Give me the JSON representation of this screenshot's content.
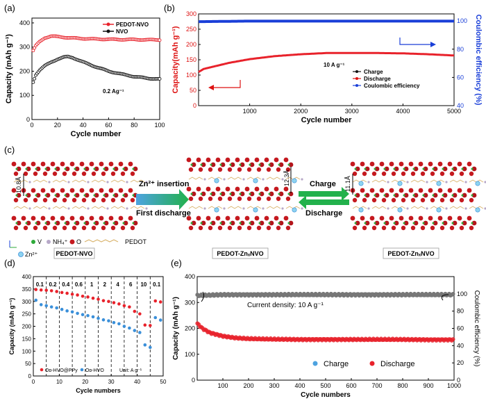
{
  "chart_data": [
    {
      "panel": "(a)",
      "type": "scatter",
      "xlabel": "Cycle number",
      "ylabel": "Capacity (mAh g⁻¹)",
      "xlim": [
        0,
        100
      ],
      "ylim": [
        0,
        420
      ],
      "xticks": [
        "0",
        "20",
        "40",
        "60",
        "80",
        "100"
      ],
      "yticks": [
        "0",
        "100",
        "200",
        "300",
        "400"
      ],
      "annotation": "0.2 Ag⁻¹",
      "legend_position": "top-right",
      "series": [
        {
          "name": "PEDOT-NVO",
          "color": "#e8222b",
          "x": [
            1,
            3,
            6,
            10,
            15,
            20,
            30,
            40,
            50,
            60,
            70,
            80,
            90,
            100
          ],
          "y": [
            285,
            305,
            322,
            338,
            345,
            343,
            338,
            335,
            333,
            332,
            331,
            331,
            330,
            330
          ]
        },
        {
          "name": "NVO",
          "color": "#111111",
          "x": [
            1,
            3,
            6,
            10,
            15,
            20,
            25,
            28,
            32,
            40,
            50,
            60,
            70,
            80,
            90,
            100
          ],
          "y": [
            155,
            185,
            205,
            222,
            237,
            250,
            258,
            260,
            256,
            238,
            218,
            200,
            188,
            178,
            171,
            167
          ]
        }
      ]
    },
    {
      "panel": "(b)",
      "type": "scatter",
      "xlabel": "Cycle number",
      "ylabel": "Capacity(mAh g⁻¹)",
      "y2label": "Coulombic efficiency (%)",
      "xlim": [
        0,
        5000
      ],
      "ylim": [
        0,
        300
      ],
      "y2lim": [
        40,
        105
      ],
      "xticks": [
        "1000",
        "2000",
        "3000",
        "4000",
        "5000"
      ],
      "yticks": [
        "0",
        "50",
        "100",
        "150",
        "200",
        "250",
        "300"
      ],
      "y2ticks": [
        "40",
        "60",
        "80",
        "100"
      ],
      "annotation": "10 A g⁻¹",
      "legend_position": "bottom-right",
      "legend": [
        "Charge",
        "Discharge",
        "Coulombic efficiency"
      ],
      "series": [
        {
          "name": "Discharge",
          "color": "#e8222b",
          "x": [
            0,
            100,
            300,
            600,
            1000,
            1500,
            2000,
            2500,
            3000,
            3500,
            4000,
            4500,
            5000
          ],
          "y": [
            110,
            120,
            128,
            140,
            152,
            162,
            168,
            172,
            172,
            172,
            171,
            168,
            164
          ]
        },
        {
          "name": "Coulombic efficiency",
          "color": "#1a3fd8",
          "axis": "y2",
          "x": [
            0,
            1000,
            2000,
            3000,
            4000,
            5000
          ],
          "y": [
            99.5,
            99.9,
            99.9,
            99.9,
            99.9,
            99.9
          ]
        }
      ]
    },
    {
      "panel": "(d)",
      "type": "scatter",
      "xlabel": "Cycle numbers",
      "ylabel": "Capacity (mAh g⁻¹)",
      "xlim": [
        0,
        50
      ],
      "ylim": [
        0,
        400
      ],
      "xticks": [
        "0",
        "10",
        "20",
        "30",
        "40",
        "50"
      ],
      "yticks": [
        "0",
        "50",
        "100",
        "150",
        "200",
        "250",
        "300",
        "350",
        "400"
      ],
      "rate_labels": [
        "0.1",
        "0.2",
        "0.4",
        "0.6",
        "1",
        "2",
        "4",
        "6",
        "10",
        "0.1"
      ],
      "unit_label": "Unit: A g⁻¹",
      "series": [
        {
          "name": "Oᴅ-HVO@PPy",
          "color": "#e8222b",
          "x": [
            1,
            3,
            5,
            7,
            9,
            11,
            13,
            15,
            17,
            19,
            21,
            23,
            25,
            27,
            29,
            31,
            33,
            35,
            37,
            39,
            41,
            43,
            45,
            47,
            49
          ],
          "y": [
            348,
            346,
            345,
            343,
            340,
            336,
            333,
            329,
            326,
            321,
            318,
            313,
            309,
            303,
            300,
            295,
            290,
            283,
            278,
            260,
            250,
            205,
            203,
            302,
            298
          ]
        },
        {
          "name": "Oᴅ-HVO",
          "color": "#3a8fd9",
          "x": [
            1,
            3,
            5,
            7,
            9,
            11,
            13,
            15,
            17,
            19,
            21,
            23,
            25,
            27,
            29,
            31,
            33,
            35,
            37,
            39,
            41,
            43,
            45,
            47,
            49
          ],
          "y": [
            305,
            287,
            283,
            278,
            274,
            268,
            262,
            258,
            252,
            247,
            243,
            238,
            232,
            226,
            222,
            215,
            210,
            200,
            193,
            183,
            175,
            125,
            115,
            235,
            225
          ]
        }
      ]
    },
    {
      "panel": "(e)",
      "type": "scatter",
      "xlabel": "Cycle numbers",
      "ylabel": "Capacity (mAh g⁻¹)",
      "y2label": "Coulombic efficiency (%)",
      "xlim": [
        0,
        1000
      ],
      "ylim": [
        0,
        400
      ],
      "y2lim": [
        0,
        120
      ],
      "xticks": [
        "100",
        "200",
        "300",
        "400",
        "500",
        "600",
        "700",
        "800",
        "900",
        "1000"
      ],
      "yticks": [
        "0",
        "100",
        "200",
        "300",
        "400"
      ],
      "y2ticks": [
        "0",
        "20",
        "40",
        "60",
        "80",
        "100"
      ],
      "annotation": "Current density: 10 A g⁻¹",
      "legend": [
        "Charge",
        "Discharge"
      ],
      "series": [
        {
          "name": "Discharge",
          "color": "#e8222b",
          "x": [
            1,
            20,
            50,
            100,
            150,
            200,
            300,
            400,
            500,
            600,
            700,
            800,
            900,
            1000
          ],
          "y": [
            218,
            200,
            183,
            170,
            163,
            160,
            158,
            157,
            157,
            157,
            157,
            157,
            156,
            156
          ]
        },
        {
          "name": "Coulombic efficiency",
          "color": "#777777",
          "axis": "y2",
          "x": [
            1,
            100,
            200,
            300,
            400,
            500,
            600,
            700,
            800,
            900,
            1000
          ],
          "y": [
            98,
            99,
            99,
            99,
            99,
            99,
            99,
            99,
            99,
            99,
            99
          ]
        }
      ]
    }
  ],
  "labels": {
    "a": "(a)",
    "b": "(b)",
    "c": "(c)",
    "d": "(d)",
    "e": "(e)"
  },
  "schematic": {
    "insertion": "Zn²⁺ insertion",
    "first_discharge": "First discharge",
    "charge": "Charge",
    "discharge": "Discharge",
    "spacing_left": "10.8Å",
    "spacing_mid": "12.3Å",
    "spacing_right": "11.1Å",
    "label_left": "PEDOT-NVO",
    "label_mid": "PEDOT-ZnₓNVO",
    "label_right": "PEDOT-ZnₓNVO",
    "legend_v": "V",
    "legend_nh4": "NH₄⁺",
    "legend_o": "O",
    "legend_pedot": "PEDOT",
    "legend_zn": "Zn²⁺"
  }
}
